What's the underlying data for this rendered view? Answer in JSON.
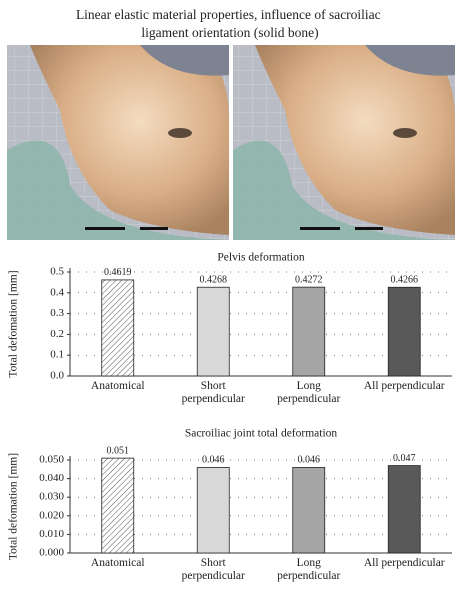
{
  "title": "Linear elastic material properties, influence of sacroiliac ligament orientation (solid bone)",
  "chart_data": [
    {
      "type": "bar",
      "title": "Pelvis deformation",
      "ylabel": "Total defomation [mm]",
      "categories": [
        "Anatomical",
        "Short perpendicular",
        "Long perpendicular",
        "All perpendicular"
      ],
      "values": [
        0.4619,
        0.4268,
        0.4272,
        0.4266
      ],
      "colors": [
        "hatch",
        "#d9d9d9",
        "#a6a6a6",
        "#595959"
      ],
      "ylim": [
        0,
        0.5
      ],
      "yticks": [
        {
          "value": 0,
          "label": "0.0"
        },
        0.1,
        0.2,
        0.3,
        0.4,
        0.5
      ],
      "grid": true
    },
    {
      "type": "bar",
      "title": "Sacroiliac joint total deformation",
      "ylabel": "Total defomation [mm]",
      "categories": [
        "Anatomical",
        "Short perpendicular",
        "Long perpendicular",
        "All perpendicular"
      ],
      "values": [
        0.051,
        0.046,
        0.046,
        0.047
      ],
      "colors": [
        "hatch",
        "#d9d9d9",
        "#a6a6a6",
        "#595959"
      ],
      "ylim": [
        0,
        0.05
      ],
      "yticks": [
        {
          "value": 0,
          "label": "0.000"
        },
        {
          "value": 0.01,
          "label": "0.010"
        },
        {
          "value": 0.02,
          "label": "0.020"
        },
        {
          "value": 0.03,
          "label": "0.030"
        },
        {
          "value": 0.04,
          "label": "0.040"
        },
        {
          "value": 0.05,
          "label": "0.050"
        }
      ],
      "grid": true
    }
  ]
}
